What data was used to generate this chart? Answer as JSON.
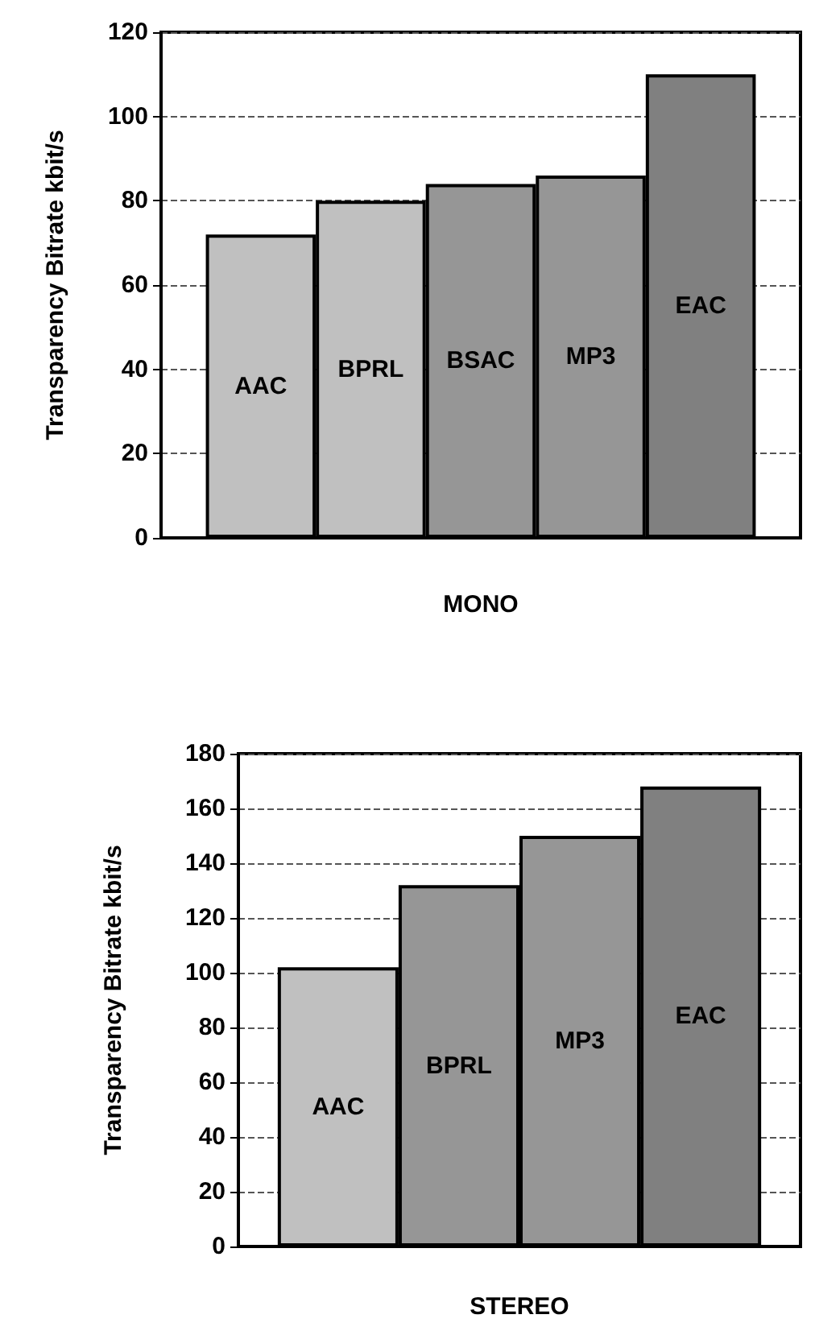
{
  "chart_data": [
    {
      "type": "bar",
      "xlabel": "MONO",
      "ylabel": "Transparency Bitrate kbit/s",
      "categories": [
        null
      ],
      "series": [
        {
          "name": "AAC",
          "color": "#c0c0c0",
          "values": [
            72
          ]
        },
        {
          "name": "BPRL",
          "color": "#c0c0c0",
          "values": [
            80
          ]
        },
        {
          "name": "BSAC",
          "color": "#969696",
          "values": [
            84
          ]
        },
        {
          "name": "MP3",
          "color": "#969696",
          "values": [
            86
          ]
        },
        {
          "name": "EAC",
          "color": "#808080",
          "values": [
            110
          ]
        }
      ],
      "ylim": [
        0,
        120
      ],
      "yticks": [
        0,
        20,
        40,
        60,
        80,
        100,
        120
      ],
      "grid": "y",
      "legend": false
    },
    {
      "type": "bar",
      "xlabel": "STEREO",
      "ylabel": "Transparency Bitrate kbit/s",
      "categories": [
        null
      ],
      "series": [
        {
          "name": "AAC",
          "color": "#c0c0c0",
          "values": [
            102
          ]
        },
        {
          "name": "BPRL",
          "color": "#969696",
          "values": [
            132
          ]
        },
        {
          "name": "MP3",
          "color": "#969696",
          "values": [
            150
          ]
        },
        {
          "name": "EAC",
          "color": "#808080",
          "values": [
            168
          ]
        }
      ],
      "ylim": [
        0,
        180
      ],
      "yticks": [
        0,
        20,
        40,
        60,
        80,
        100,
        120,
        140,
        160,
        180
      ],
      "grid": "y",
      "legend": false
    }
  ]
}
